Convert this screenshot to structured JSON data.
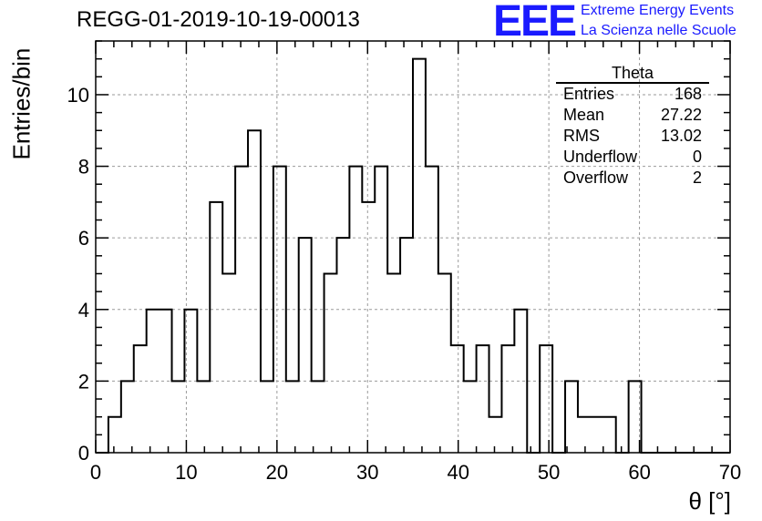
{
  "header": {
    "title": "REGG-01-2019-10-19-00013",
    "logo_text": "EEE",
    "logo_line1": "Extreme Energy Events",
    "logo_line2": "La Scienza nelle Scuole"
  },
  "stats_box": {
    "title": "Theta",
    "rows": [
      {
        "label": "Entries",
        "value": "168"
      },
      {
        "label": "Mean",
        "value": "27.22"
      },
      {
        "label": "RMS",
        "value": "13.02"
      },
      {
        "label": "Underflow",
        "value": "0"
      },
      {
        "label": "Overflow",
        "value": "2"
      }
    ]
  },
  "chart_data": {
    "type": "bar",
    "style": "step-histogram",
    "xlabel": "θ [°]",
    "ylabel": "Entries/bin",
    "xlim": [
      0,
      70
    ],
    "ylim": [
      0,
      11.5
    ],
    "x_ticks": [
      0,
      10,
      20,
      30,
      40,
      50,
      60,
      70
    ],
    "y_ticks": [
      0,
      2,
      4,
      6,
      8,
      10
    ],
    "grid": true,
    "bin_width": 1.4,
    "bin_edges_start": 0,
    "values": [
      0,
      1,
      2,
      3,
      4,
      4,
      2,
      4,
      2,
      7,
      5,
      8,
      9,
      2,
      8,
      2,
      6,
      2,
      5,
      6,
      8,
      7,
      8,
      5,
      6,
      11,
      8,
      5,
      3,
      2,
      3,
      1,
      3,
      4,
      0,
      3,
      0,
      2,
      1,
      1,
      1,
      0,
      2,
      0,
      0,
      0,
      0,
      0,
      0,
      0
    ]
  },
  "colors": {
    "logo": "#1a1aff",
    "grid": "#9a9a9a",
    "line": "#000000"
  }
}
